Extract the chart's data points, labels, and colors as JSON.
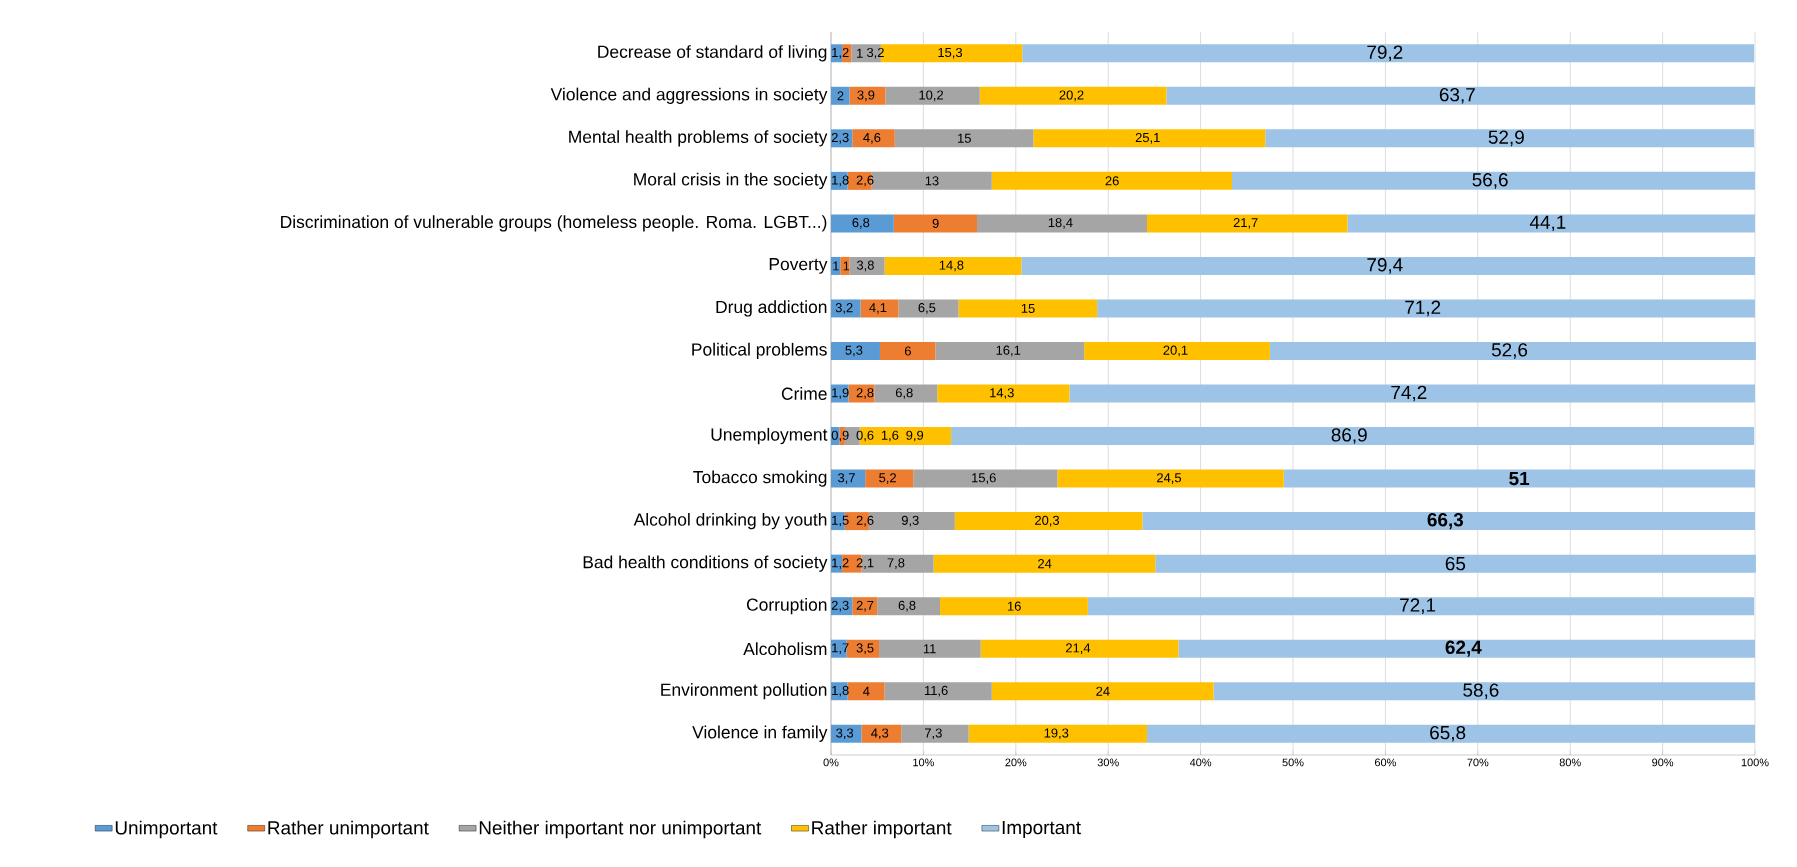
{
  "chart_data": {
    "type": "bar",
    "orientation": "horizontal",
    "stacked": true,
    "categories": [
      "Decrease of standard of living",
      "Violence and aggressions in society",
      "Mental health problems of society",
      "Moral crisis in the society",
      "Discrimination of vulnerable groups (homeless people. Roma. LGBT...)",
      "Poverty",
      "Drug addiction",
      "Political problems",
      "Crime",
      "Unemployment",
      "Tobacco smoking",
      "Alcohol drinking by youth",
      "Bad health conditions of society",
      "Corruption",
      "Alcoholism",
      "Environment pollution",
      "Violence in family"
    ],
    "series": [
      {
        "name": "Unimportant",
        "color": "#5b9bd5",
        "values": [
          1.2,
          2,
          2.3,
          1.8,
          6.8,
          1,
          3.2,
          5.3,
          1.9,
          0.9,
          3.7,
          1.5,
          1.2,
          2.3,
          1.7,
          1.8,
          3.3
        ],
        "value_labels": [
          "1,2",
          "2",
          "2,3",
          "1,8",
          "6,8",
          "1",
          "3,2",
          "5,3",
          "1,9",
          "0,9",
          "3,7",
          "1,5",
          "1,2",
          "2,3",
          "1,7",
          "1,8",
          "3,3"
        ]
      },
      {
        "name": "Rather unimportant",
        "color": "#ed7d31",
        "values": [
          1,
          3.9,
          4.6,
          2.6,
          9,
          1,
          4.1,
          6,
          2.8,
          0.6,
          5.2,
          2.6,
          2.1,
          2.7,
          3.5,
          4,
          4.3
        ],
        "value_labels": [
          "1",
          "3,9",
          "4,6",
          "2,6",
          "9",
          "1",
          "4,1",
          "6",
          "2,8",
          "0,6",
          "5,2",
          "2,6",
          "2,1",
          "2,7",
          "3,5",
          "4",
          "4,3"
        ]
      },
      {
        "name": "Neither important nor unimportant",
        "color": "#a5a5a5",
        "values": [
          3.2,
          10.2,
          15,
          13,
          18.4,
          3.8,
          6.5,
          16.1,
          6.8,
          1.6,
          15.6,
          9.3,
          7.8,
          6.8,
          11,
          11.6,
          7.3
        ],
        "value_labels": [
          "3,2",
          "10,2",
          "15",
          "13",
          "18,4",
          "3,8",
          "6,5",
          "16,1",
          "6,8",
          "1,6",
          "15,6",
          "9,3",
          "7,8",
          "6,8",
          "11",
          "11,6",
          "7,3"
        ]
      },
      {
        "name": "Rather important",
        "color": "#ffc000",
        "values": [
          15.3,
          20.2,
          25.1,
          26,
          21.7,
          14.8,
          15,
          20.1,
          14.3,
          9.9,
          24.5,
          20.3,
          24,
          16,
          21.4,
          24,
          19.3
        ],
        "value_labels": [
          "15,3",
          "20,2",
          "25,1",
          "26",
          "21,7",
          "14,8",
          "15",
          "20,1",
          "14,3",
          "9,9",
          "24,5",
          "20,3",
          "24",
          "16",
          "21,4",
          "24",
          "19,3"
        ]
      },
      {
        "name": "Important",
        "color": "#9dc3e6",
        "values": [
          79.2,
          63.7,
          52.9,
          56.6,
          44.1,
          79.4,
          71.2,
          52.6,
          74.2,
          86.9,
          51,
          66.3,
          65,
          72.1,
          62.4,
          58.6,
          65.8
        ],
        "value_labels": [
          "79,2",
          "63,7",
          "52,9",
          "56,6",
          "44,1",
          "79,4",
          "71,2",
          "52,6",
          "74,2",
          "86,9",
          "**51**",
          "**66,3**",
          "65",
          "72,1",
          "**62,4**",
          "58,6",
          "65,8"
        ]
      }
    ],
    "xlim": [
      0,
      100
    ],
    "xticks": [
      {
        "value": 0,
        "label": "0%"
      },
      {
        "value": 10,
        "label": "10%"
      },
      {
        "value": 20,
        "label": "20%"
      },
      {
        "value": 30,
        "label": "30%"
      },
      {
        "value": 40,
        "label": "40%"
      },
      {
        "value": 50,
        "label": "50%"
      },
      {
        "value": 60,
        "label": "60%"
      },
      {
        "value": 70,
        "label": "70%"
      },
      {
        "value": 80,
        "label": "80%"
      },
      {
        "value": 90,
        "label": "90%"
      },
      {
        "value": 100,
        "label": "100%"
      }
    ],
    "grid": "x",
    "legend": "bottom"
  }
}
